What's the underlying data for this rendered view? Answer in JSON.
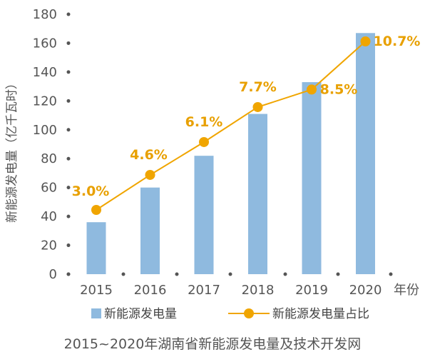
{
  "chart_data": {
    "type": "bar",
    "categories": [
      "2015",
      "2016",
      "2017",
      "2018",
      "2019",
      "2020"
    ],
    "x_unit": "年份",
    "ylabel": "新能源发电量（亿千瓦时）",
    "ylim": [
      0,
      180
    ],
    "yticks": [
      "0",
      "20",
      "40",
      "60",
      "80",
      "100",
      "120",
      "140",
      "160",
      "180"
    ],
    "series": [
      {
        "name": "新能源发电量",
        "type": "bar",
        "color": "#8fbadf",
        "values": [
          36,
          60,
          82,
          111,
          133,
          167
        ]
      },
      {
        "name": "新能源发电量占比",
        "type": "line",
        "color": "#f0a500",
        "values": [
          3.0,
          4.6,
          6.1,
          7.7,
          8.5,
          10.7
        ],
        "labels": [
          "3.0%",
          "4.6%",
          "6.1%",
          "7.7%",
          "8.5%",
          "10.7%"
        ]
      }
    ],
    "legend_position": "bottom",
    "grid": false
  },
  "caption": "2015~2020年湖南省新能源发电量及技术开发网"
}
